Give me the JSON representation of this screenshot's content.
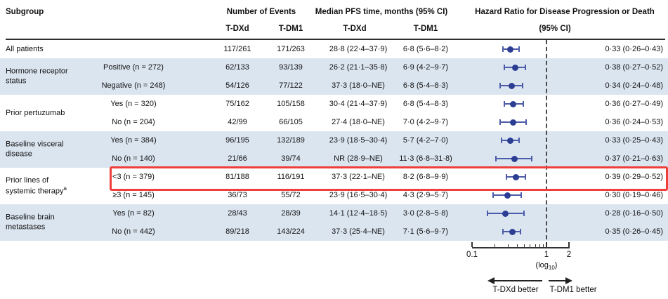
{
  "header": {
    "subgroup": "Subgroup",
    "events_group": "Number of Events",
    "median_group": "Median PFS time, months (95% CI)",
    "hr_group": "Hazard Ratio for Disease Progression or Death",
    "hr_sub": "(95% CI)",
    "arm1": "T-DXd",
    "arm2": "T-DM1"
  },
  "footer": {
    "left_arrow_label": "T-DXd better",
    "right_arrow_label": "T-DM1 better"
  },
  "axis": {
    "tick_labels": [
      "0.1",
      "1",
      "2"
    ],
    "tick_values": [
      0.1,
      1,
      2
    ],
    "minor_ticks": [
      0.2,
      0.3,
      0.4,
      0.5,
      0.6,
      0.7,
      0.8,
      0.9
    ],
    "scale_note_prefix": "(log",
    "scale_note_sub": "10",
    "scale_note_suffix": ")"
  },
  "colors": {
    "band": "#dbe5f0",
    "dot": "#2c3e94",
    "ci": "#4d5ca8",
    "highlight_box": "#ee3f3b"
  },
  "chart_data": {
    "type": "scatter",
    "variant": "forest-plot",
    "title": "Hazard Ratio for Disease Progression or Death (95% CI)",
    "x_axis": {
      "scale": "log10",
      "min": 0.1,
      "max": 2,
      "reference_line": 1,
      "ticks": [
        0.1,
        1,
        2
      ]
    },
    "groups": [
      {
        "label": "All patients",
        "label_sup": "",
        "shaded": false,
        "rows": [
          {
            "level": "",
            "ev1": "117/261",
            "ev2": "171/263",
            "m1": "28·8 (22·4–37·9)",
            "m2": "6·8 (5·6–8·2)",
            "hr": 0.33,
            "lo": 0.26,
            "hi": 0.43,
            "hr_text": "0·33 (0·26–0·43)",
            "highlight": false
          }
        ]
      },
      {
        "label": "Hormone receptor status",
        "label_sup": "",
        "shaded": true,
        "rows": [
          {
            "level": "Positive (n = 272)",
            "ev1": "62/133",
            "ev2": "93/139",
            "m1": "26·2 (21·1–35·8)",
            "m2": "6·9 (4·2–9·7)",
            "hr": 0.38,
            "lo": 0.27,
            "hi": 0.52,
            "hr_text": "0·38 (0·27–0·52)",
            "highlight": false
          },
          {
            "level": "Negative (n = 248)",
            "ev1": "54/126",
            "ev2": "77/122",
            "m1": "37·3 (18·0–NE)",
            "m2": "6·8 (5·4–8·3)",
            "hr": 0.34,
            "lo": 0.24,
            "hi": 0.48,
            "hr_text": "0·34 (0·24–0·48)",
            "highlight": false
          }
        ]
      },
      {
        "label": "Prior pertuzumab",
        "label_sup": "",
        "shaded": false,
        "rows": [
          {
            "level": "Yes (n = 320)",
            "ev1": "75/162",
            "ev2": "105/158",
            "m1": "30·4 (21·4–37·9)",
            "m2": "6·8 (5·4–8·3)",
            "hr": 0.36,
            "lo": 0.27,
            "hi": 0.49,
            "hr_text": "0·36 (0·27–0·49)",
            "highlight": false
          },
          {
            "level": "No (n = 204)",
            "ev1": "42/99",
            "ev2": "66/105",
            "m1": "27·4 (18·0–NE)",
            "m2": "7·0 (4·2–9·7)",
            "hr": 0.36,
            "lo": 0.24,
            "hi": 0.53,
            "hr_text": "0·36 (0·24–0·53)",
            "highlight": false
          }
        ]
      },
      {
        "label": "Baseline visceral disease",
        "label_sup": "",
        "shaded": true,
        "rows": [
          {
            "level": "Yes (n = 384)",
            "ev1": "96/195",
            "ev2": "132/189",
            "m1": "23·9 (18·5–30·4)",
            "m2": "5·7 (4·2–7·0)",
            "hr": 0.33,
            "lo": 0.25,
            "hi": 0.43,
            "hr_text": "0·33 (0·25–0·43)",
            "highlight": false
          },
          {
            "level": "No (n = 140)",
            "ev1": "21/66",
            "ev2": "39/74",
            "m1": "NR (28·9–NE)",
            "m2": "11·3 (6·8–31·8)",
            "hr": 0.37,
            "lo": 0.21,
            "hi": 0.63,
            "hr_text": "0·37 (0·21–0·63)",
            "highlight": false
          }
        ]
      },
      {
        "label": "Prior lines of systemic therapy",
        "label_sup": "a",
        "shaded": false,
        "rows": [
          {
            "level": "<3 (n = 379)",
            "ev1": "81/188",
            "ev2": "116/191",
            "m1": "37·3 (22·1–NE)",
            "m2": "8·2 (6·8–9·9)",
            "hr": 0.39,
            "lo": 0.29,
            "hi": 0.52,
            "hr_text": "0·39 (0·29–0·52)",
            "highlight": true
          },
          {
            "level": "≥3 (n = 145)",
            "ev1": "36/73",
            "ev2": "55/72",
            "m1": "23·9 (16·5–30·4)",
            "m2": "4·3 (2·9–5·7)",
            "hr": 0.3,
            "lo": 0.19,
            "hi": 0.46,
            "hr_text": "0·30 (0·19–0·46)",
            "highlight": false
          }
        ]
      },
      {
        "label": "Baseline brain metastases",
        "label_sup": "",
        "shaded": true,
        "rows": [
          {
            "level": "Yes (n = 82)",
            "ev1": "28/43",
            "ev2": "28/39",
            "m1": "14·1 (12·4–18·5)",
            "m2": "3·0 (2·8–5·8)",
            "hr": 0.28,
            "lo": 0.16,
            "hi": 0.5,
            "hr_text": "0·28 (0·16–0·50)",
            "highlight": false
          },
          {
            "level": "No (n = 442)",
            "ev1": "89/218",
            "ev2": "143/224",
            "m1": "37·3 (25·4–NE)",
            "m2": "7·1 (5·6–9·7)",
            "hr": 0.35,
            "lo": 0.26,
            "hi": 0.45,
            "hr_text": "0·35 (0·26–0·45)",
            "highlight": false
          }
        ]
      }
    ]
  }
}
